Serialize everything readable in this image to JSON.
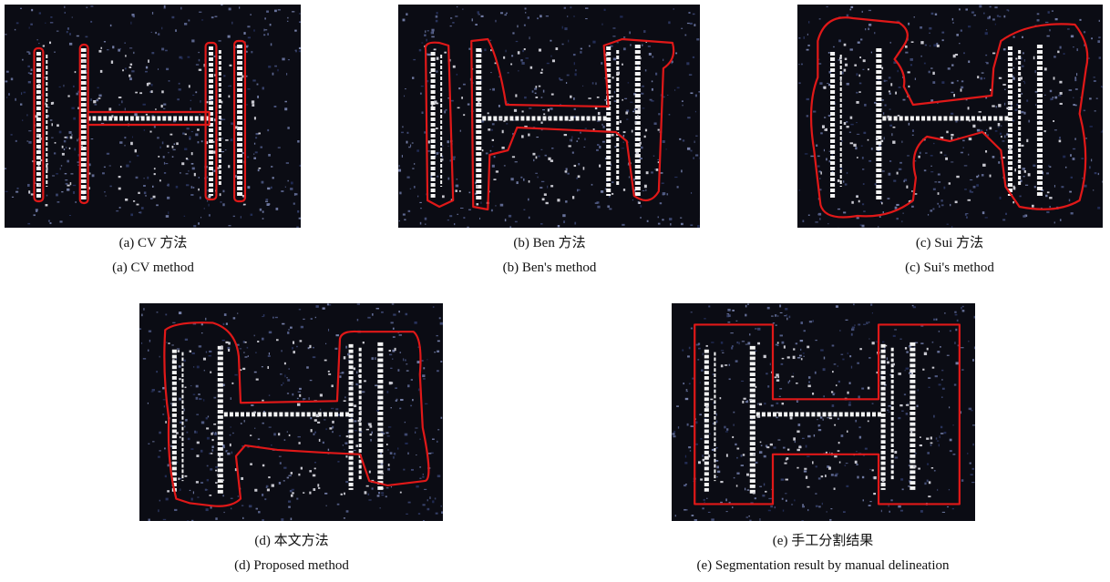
{
  "figure": {
    "panels": [
      {
        "caption_zh": "(a) CV 方法",
        "caption_en": "(a) CV method"
      },
      {
        "caption_zh": "(b) Ben 方法",
        "caption_en": "(b) Ben's method"
      },
      {
        "caption_zh": "(c) Sui 方法",
        "caption_en": "(c) Sui's method"
      },
      {
        "caption_zh": "(d) 本文方法",
        "caption_en": "(d) Proposed method"
      },
      {
        "caption_zh": "(e) 手工分割结果",
        "caption_en": "(e) Segmentation result by manual delineation"
      }
    ]
  }
}
